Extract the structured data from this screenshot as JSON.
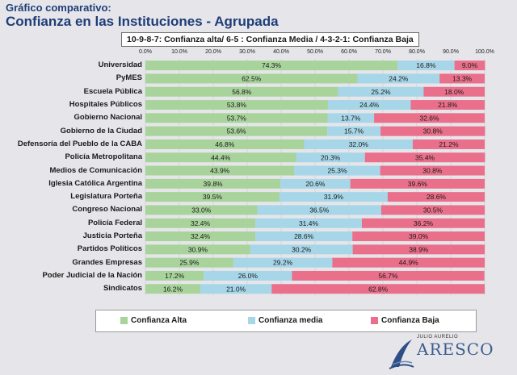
{
  "header": {
    "subtitle": "Gráfico comparativo:",
    "title": "Confianza en las Instituciones - Agrupada",
    "scale_note": "10-9-8-7: Confianza alta/ 6-5 : Confianza Media / 4-3-2-1: Confianza Baja"
  },
  "chart_data": {
    "type": "bar",
    "orientation": "horizontal",
    "stacked": true,
    "xlim": [
      0,
      100
    ],
    "x_ticks": [
      "0.0%",
      "10.0%",
      "20.0%",
      "30.0%",
      "40.0%",
      "50.0%",
      "60.0%",
      "70.0%",
      "80.0%",
      "90.0%",
      "100.0%"
    ],
    "categories": [
      "Universidad",
      "PyMES",
      "Escuela Pública",
      "Hospitales Públicos",
      "Gobierno Nacional",
      "Gobierno de la Ciudad",
      "Defensoría del Pueblo de la CABA",
      "Policía Metropolitana",
      "Medios de Comunicación",
      "Iglesia Católica Argentina",
      "Legislatura Porteña",
      "Congreso Nacional",
      "Policía Federal",
      "Justicia Porteña",
      "Partidos Políticos",
      "Grandes Empresas",
      "Poder Judicial de la Nación",
      "Sindicatos"
    ],
    "series": [
      {
        "name": "Confianza Alta",
        "color": "#a8d39b",
        "values": [
          74.3,
          62.5,
          56.8,
          53.8,
          53.7,
          53.6,
          46.8,
          44.4,
          43.9,
          39.8,
          39.5,
          33.0,
          32.4,
          32.4,
          30.9,
          25.9,
          17.2,
          16.2
        ],
        "labels": [
          "74.3%",
          "62.5%",
          "56.8%",
          "53.8%",
          "53.7%",
          "53.6%",
          "46.8%",
          "44.4%",
          "43.9%",
          "39.8%",
          "39.5%",
          "33.0%",
          "32.4%",
          "32.4%",
          "30.9%",
          "25.9%",
          "17.2%",
          "16.2%"
        ]
      },
      {
        "name": "Confianza media",
        "color": "#a6d6e8",
        "values": [
          16.8,
          24.2,
          25.2,
          24.4,
          13.7,
          15.7,
          32.0,
          20.3,
          25.3,
          20.6,
          31.9,
          36.5,
          31.4,
          28.6,
          30.2,
          29.2,
          26.0,
          21.0
        ],
        "labels": [
          "16.8%",
          "24.2%",
          "25.2%",
          "24.4%",
          "13.7%",
          "15.7%",
          "32.0%",
          "20.3%",
          "25.3%",
          "20.6%",
          "31.9%",
          "36.5%",
          "31.4%",
          "28.6%",
          "30.2%",
          "29.2%",
          "26.0%",
          "21.0%"
        ]
      },
      {
        "name": "Confianza Baja",
        "color": "#ea6f8b",
        "values": [
          9.0,
          13.3,
          18.0,
          21.8,
          32.6,
          30.8,
          21.2,
          35.4,
          30.8,
          39.6,
          28.6,
          30.5,
          36.2,
          39.0,
          38.9,
          44.9,
          56.7,
          62.8
        ],
        "labels": [
          "9.0%",
          "13.3%",
          "18.0%",
          "21.8%",
          "32.6%",
          "30.8%",
          "21.2%",
          "35.4%",
          "30.8%",
          "39.6%",
          "28.6%",
          "30.5%",
          "36.2%",
          "39.0%",
          "38.9%",
          "44.9%",
          "56.7%",
          "62.8%"
        ]
      }
    ],
    "legend": [
      "Confianza Alta",
      "Confianza media",
      "Confianza Baja"
    ],
    "legend_position": "bottom"
  },
  "logo": {
    "small_text": "JULIO AURELIO",
    "brand": "ARESCO",
    "name": "aresco-logo"
  }
}
